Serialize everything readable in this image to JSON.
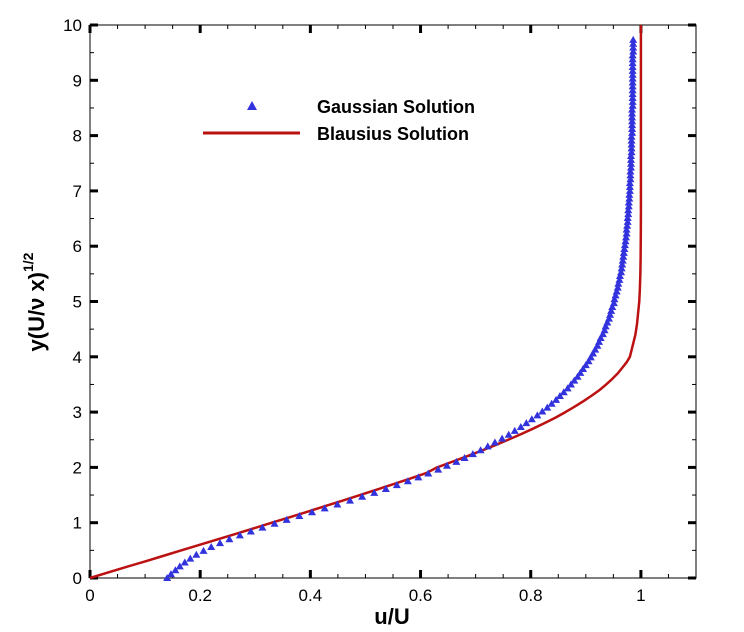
{
  "chart_data": {
    "type": "line",
    "xlabel": "u/U",
    "ylabel_base": "y(U/ν x)",
    "ylabel_exponent": "1/2",
    "xlim": [
      0,
      1.1
    ],
    "ylim": [
      0,
      10
    ],
    "x_ticks": [
      0,
      0.2,
      0.4,
      0.6,
      0.8,
      1
    ],
    "x_tick_labels": [
      "0",
      "0.2",
      "0.4",
      "0.6",
      "0.8",
      "1"
    ],
    "y_ticks": [
      0,
      1,
      2,
      3,
      4,
      5,
      6,
      7,
      8,
      9,
      10
    ],
    "y_tick_labels": [
      "0",
      "1",
      "2",
      "3",
      "4",
      "5",
      "6",
      "7",
      "8",
      "9",
      "10"
    ],
    "grid": false,
    "legend_position": "top-center",
    "series": [
      {
        "name": "Gaussian Solution",
        "kind": "scatter",
        "marker": "triangle",
        "color": "#3333dd",
        "points": [
          [
            0.14,
            0.0
          ],
          [
            0.147,
            0.07
          ],
          [
            0.155,
            0.14
          ],
          [
            0.163,
            0.21
          ],
          [
            0.172,
            0.28
          ],
          [
            0.182,
            0.35
          ],
          [
            0.193,
            0.42
          ],
          [
            0.206,
            0.49
          ],
          [
            0.22,
            0.56
          ],
          [
            0.236,
            0.63
          ],
          [
            0.253,
            0.7
          ],
          [
            0.272,
            0.77
          ],
          [
            0.292,
            0.84
          ],
          [
            0.313,
            0.91
          ],
          [
            0.335,
            0.98
          ],
          [
            0.357,
            1.05
          ],
          [
            0.38,
            1.12
          ],
          [
            0.403,
            1.19
          ],
          [
            0.426,
            1.26
          ],
          [
            0.449,
            1.33
          ],
          [
            0.472,
            1.4
          ],
          [
            0.494,
            1.47
          ],
          [
            0.516,
            1.54
          ],
          [
            0.537,
            1.61
          ],
          [
            0.557,
            1.68
          ],
          [
            0.577,
            1.75
          ],
          [
            0.596,
            1.82
          ],
          [
            0.614,
            1.89
          ],
          [
            0.632,
            1.96
          ],
          [
            0.648,
            2.03
          ],
          [
            0.665,
            2.1
          ],
          [
            0.68,
            2.17
          ],
          [
            0.695,
            2.24
          ],
          [
            0.709,
            2.31
          ],
          [
            0.722,
            2.38
          ],
          [
            0.735,
            2.45
          ],
          [
            0.748,
            2.52
          ],
          [
            0.76,
            2.59
          ],
          [
            0.771,
            2.66
          ],
          [
            0.782,
            2.73
          ],
          [
            0.792,
            2.8
          ],
          [
            0.802,
            2.87
          ],
          [
            0.812,
            2.94
          ],
          [
            0.821,
            3.01
          ],
          [
            0.83,
            3.08
          ],
          [
            0.838,
            3.15
          ],
          [
            0.846,
            3.22
          ],
          [
            0.853,
            3.29
          ],
          [
            0.86,
            3.36
          ],
          [
            0.867,
            3.43
          ],
          [
            0.873,
            3.5
          ],
          [
            0.879,
            3.57
          ],
          [
            0.885,
            3.64
          ],
          [
            0.89,
            3.71
          ],
          [
            0.895,
            3.78
          ],
          [
            0.9,
            3.85
          ],
          [
            0.905,
            3.92
          ],
          [
            0.909,
            3.99
          ],
          [
            0.913,
            4.06
          ],
          [
            0.917,
            4.13
          ],
          [
            0.921,
            4.2
          ],
          [
            0.924,
            4.27
          ],
          [
            0.927,
            4.34
          ],
          [
            0.931,
            4.41
          ],
          [
            0.934,
            4.48
          ],
          [
            0.936,
            4.55
          ],
          [
            0.939,
            4.62
          ],
          [
            0.942,
            4.69
          ],
          [
            0.944,
            4.76
          ],
          [
            0.946,
            4.83
          ],
          [
            0.948,
            4.9
          ],
          [
            0.951,
            4.97
          ],
          [
            0.952,
            5.04
          ],
          [
            0.954,
            5.11
          ],
          [
            0.956,
            5.18
          ],
          [
            0.958,
            5.25
          ],
          [
            0.959,
            5.32
          ],
          [
            0.961,
            5.39
          ],
          [
            0.962,
            5.46
          ],
          [
            0.964,
            5.53
          ],
          [
            0.965,
            5.6
          ],
          [
            0.966,
            5.67
          ],
          [
            0.967,
            5.74
          ],
          [
            0.968,
            5.81
          ],
          [
            0.969,
            5.88
          ],
          [
            0.97,
            5.95
          ],
          [
            0.971,
            6.02
          ],
          [
            0.972,
            6.09
          ],
          [
            0.973,
            6.16
          ],
          [
            0.974,
            6.23
          ],
          [
            0.974,
            6.3
          ],
          [
            0.975,
            6.37
          ],
          [
            0.976,
            6.44
          ],
          [
            0.976,
            6.51
          ],
          [
            0.977,
            6.58
          ],
          [
            0.977,
            6.65
          ],
          [
            0.978,
            6.72
          ],
          [
            0.978,
            6.79
          ],
          [
            0.979,
            6.86
          ],
          [
            0.979,
            6.93
          ],
          [
            0.98,
            7.0
          ],
          [
            0.98,
            7.07
          ],
          [
            0.98,
            7.14
          ],
          [
            0.981,
            7.21
          ],
          [
            0.981,
            7.28
          ],
          [
            0.981,
            7.35
          ],
          [
            0.982,
            7.42
          ],
          [
            0.982,
            7.49
          ],
          [
            0.982,
            7.56
          ],
          [
            0.982,
            7.63
          ],
          [
            0.983,
            7.7
          ],
          [
            0.983,
            7.77
          ],
          [
            0.983,
            7.84
          ],
          [
            0.983,
            7.91
          ],
          [
            0.983,
            7.98
          ],
          [
            0.984,
            8.05
          ],
          [
            0.984,
            8.12
          ],
          [
            0.984,
            8.19
          ],
          [
            0.984,
            8.26
          ],
          [
            0.984,
            8.33
          ],
          [
            0.984,
            8.4
          ],
          [
            0.984,
            8.47
          ],
          [
            0.985,
            8.54
          ],
          [
            0.985,
            8.61
          ],
          [
            0.985,
            8.68
          ],
          [
            0.985,
            8.75
          ],
          [
            0.985,
            8.82
          ],
          [
            0.985,
            8.89
          ],
          [
            0.985,
            8.96
          ],
          [
            0.985,
            9.03
          ],
          [
            0.985,
            9.1
          ],
          [
            0.985,
            9.17
          ],
          [
            0.985,
            9.24
          ],
          [
            0.985,
            9.31
          ],
          [
            0.985,
            9.38
          ],
          [
            0.985,
            9.45
          ],
          [
            0.986,
            9.52
          ],
          [
            0.986,
            9.59
          ],
          [
            0.986,
            9.66
          ],
          [
            0.986,
            9.73
          ]
        ]
      },
      {
        "name": "Blausius Solution",
        "kind": "line",
        "color": "#bb1111",
        "points": [
          [
            0.0,
            0.0
          ],
          [
            0.033,
            0.1
          ],
          [
            0.066,
            0.2
          ],
          [
            0.1,
            0.3
          ],
          [
            0.133,
            0.4
          ],
          [
            0.166,
            0.5
          ],
          [
            0.199,
            0.6
          ],
          [
            0.232,
            0.7
          ],
          [
            0.265,
            0.8
          ],
          [
            0.298,
            0.9
          ],
          [
            0.33,
            1.0
          ],
          [
            0.363,
            1.1
          ],
          [
            0.395,
            1.2
          ],
          [
            0.427,
            1.3
          ],
          [
            0.459,
            1.4
          ],
          [
            0.49,
            1.5
          ],
          [
            0.521,
            1.6
          ],
          [
            0.552,
            1.7
          ],
          [
            0.582,
            1.8
          ],
          [
            0.611,
            1.9
          ],
          [
            0.63,
            2.0
          ],
          [
            0.657,
            2.1
          ],
          [
            0.684,
            2.2
          ],
          [
            0.71,
            2.3
          ],
          [
            0.735,
            2.4
          ],
          [
            0.759,
            2.5
          ],
          [
            0.782,
            2.6
          ],
          [
            0.804,
            2.7
          ],
          [
            0.825,
            2.8
          ],
          [
            0.845,
            2.9
          ],
          [
            0.863,
            3.0
          ],
          [
            0.88,
            3.1
          ],
          [
            0.896,
            3.2
          ],
          [
            0.911,
            3.3
          ],
          [
            0.925,
            3.4
          ],
          [
            0.937,
            3.5
          ],
          [
            0.948,
            3.6
          ],
          [
            0.958,
            3.7
          ],
          [
            0.966,
            3.8
          ],
          [
            0.974,
            3.9
          ],
          [
            0.98,
            4.0
          ],
          [
            0.985,
            4.2
          ],
          [
            0.99,
            4.4
          ],
          [
            0.993,
            4.6
          ],
          [
            0.995,
            4.8
          ],
          [
            0.997,
            5.0
          ],
          [
            0.998,
            5.2
          ],
          [
            0.999,
            5.5
          ],
          [
            0.9995,
            5.8
          ],
          [
            0.9998,
            6.2
          ],
          [
            1.0,
            6.6
          ],
          [
            1.0,
            7.0
          ],
          [
            1.0,
            7.5
          ],
          [
            1.0,
            8.0
          ],
          [
            1.0,
            8.5
          ],
          [
            1.0,
            9.0
          ],
          [
            1.0,
            9.5
          ],
          [
            1.0,
            10.0
          ]
        ]
      }
    ]
  }
}
